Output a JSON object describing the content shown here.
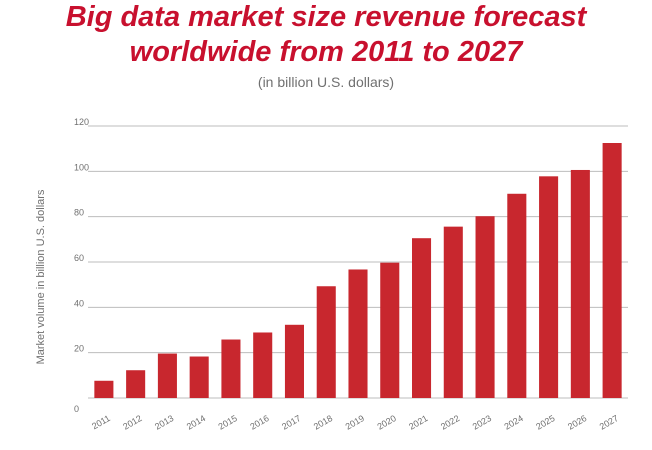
{
  "title_line1": "Big data market size revenue forecast",
  "title_line2": "worldwide from 2011 to 2027",
  "subtitle": "(in billion U.S. dollars)",
  "colors": {
    "title": "#c8102e",
    "bar": "#c8272e",
    "grid": "#bdbdbd",
    "text": "#707070"
  },
  "chart_data": {
    "type": "bar",
    "title": "Big data market size revenue forecast worldwide from 2011 to 2027",
    "subtitle": "(in billion U.S. dollars)",
    "xlabel": "",
    "ylabel": "Market volume in billion U.S. dollars",
    "ylim": [
      0,
      120
    ],
    "yticks": [
      0,
      20,
      40,
      60,
      80,
      100,
      120
    ],
    "grid": true,
    "categories": [
      "2011",
      "2012",
      "2013",
      "2014",
      "2015",
      "2016",
      "2017",
      "2018",
      "2019",
      "2020",
      "2021",
      "2022",
      "2023",
      "2024",
      "2025",
      "2026",
      "2027"
    ],
    "values": [
      7.6,
      12.25,
      19.6,
      18.3,
      25.8,
      28.9,
      32.3,
      49.3,
      56.7,
      59.7,
      70.5,
      75.6,
      80.2,
      90.1,
      97.8,
      100.6,
      112.5
    ]
  }
}
